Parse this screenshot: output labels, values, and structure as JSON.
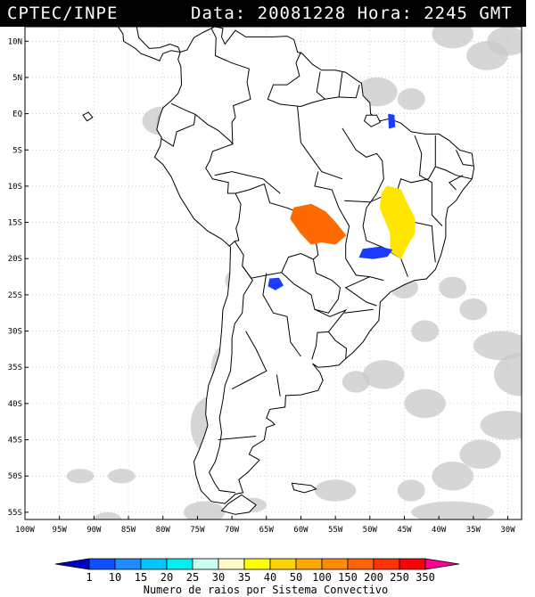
{
  "header": {
    "source": "CPTEC/INPE",
    "datetime": "Data: 20081228 Hora: 2245 GMT"
  },
  "map": {
    "lat_labels": [
      "10N",
      "5N",
      "EQ",
      "5S",
      "10S",
      "15S",
      "20S",
      "25S",
      "30S",
      "35S",
      "40S",
      "45S",
      "50S",
      "55S"
    ],
    "lon_labels": [
      "100W",
      "95W",
      "90W",
      "85W",
      "80W",
      "75W",
      "70W",
      "65W",
      "60W",
      "55W",
      "50W",
      "45W",
      "40W",
      "35W",
      "30W"
    ],
    "lat_range": [
      12,
      -56
    ],
    "lon_range": [
      -100,
      -28
    ],
    "grid": true,
    "land_outline_color": "#000000",
    "cloud_color": "#c8c8c8",
    "convective_systems": [
      {
        "name": "orange-central-brazil",
        "category": "200",
        "color": "#ff6a00",
        "lon": -57.5,
        "lat": -15.5
      },
      {
        "name": "yellow-east-brazil",
        "category": "40",
        "color": "#ffe600",
        "lon": -45.5,
        "lat": -14.5
      },
      {
        "name": "blue-south-brazil",
        "category": "10",
        "color": "#1a3cff",
        "lon": -49.0,
        "lat": -19.2
      },
      {
        "name": "blue-paraguay",
        "category": "10",
        "color": "#1a3cff",
        "lon": -63.5,
        "lat": -23.5
      },
      {
        "name": "blue-north-coast",
        "category": "10",
        "color": "#1a3cff",
        "lon": -47.0,
        "lat": -1.2
      }
    ]
  },
  "colorbar": {
    "ticks": [
      "1",
      "10",
      "15",
      "20",
      "25",
      "30",
      "35",
      "40",
      "50",
      "100",
      "150",
      "200",
      "250",
      "350"
    ],
    "colors": [
      "#0000c8",
      "#0a50ff",
      "#1e8cff",
      "#00c8ff",
      "#00f0f0",
      "#c8fff0",
      "#fffac8",
      "#ffff00",
      "#ffd200",
      "#ffaa00",
      "#ff8c00",
      "#ff6400",
      "#ff3200",
      "#ff0000",
      "#ff0096"
    ],
    "label": "Numero de raios por Sistema Convectivo"
  }
}
